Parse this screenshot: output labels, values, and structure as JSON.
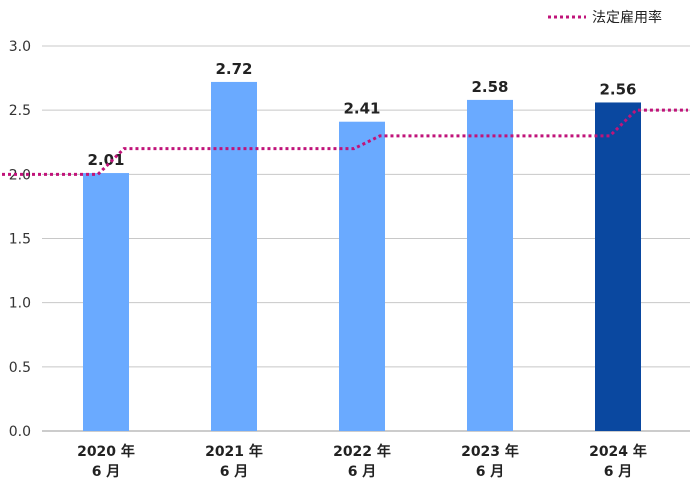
{
  "chart_data": {
    "type": "bar",
    "categories": [
      {
        "line1": "2020 年",
        "line2": "6 月"
      },
      {
        "line1": "2021 年",
        "line2": "6 月"
      },
      {
        "line1": "2022 年",
        "line2": "6 月"
      },
      {
        "line1": "2023 年",
        "line2": "6 月"
      },
      {
        "line1": "2024 年",
        "line2": "6 月"
      }
    ],
    "values": [
      2.01,
      2.72,
      2.41,
      2.58,
      2.56
    ],
    "value_labels": [
      "2.01",
      "2.72",
      "2.41",
      "2.58",
      "2.56"
    ],
    "bar_colors": [
      "#6aaaff",
      "#6aaaff",
      "#6aaaff",
      "#6aaaff",
      "#0a48a0"
    ],
    "ylim": [
      0,
      3.0
    ],
    "yticks": [
      "0.0",
      "0.5",
      "1.0",
      "1.5",
      "2.0",
      "2.5",
      "3.0"
    ],
    "grid": true,
    "legend": {
      "position": "top-right",
      "label": "法定雇用率",
      "color": "#c0147a",
      "style": "dotted"
    },
    "legal_rate_series": {
      "segments": [
        {
          "value": 2.0,
          "from": "left-edge",
          "to": 0
        },
        {
          "value": 2.2,
          "from": 0,
          "to": 2
        },
        {
          "value": 2.3,
          "from": 2,
          "to": 4
        },
        {
          "value": 2.5,
          "from": 4,
          "to": "right-edge"
        }
      ]
    },
    "title": "",
    "xlabel": "",
    "ylabel": ""
  }
}
